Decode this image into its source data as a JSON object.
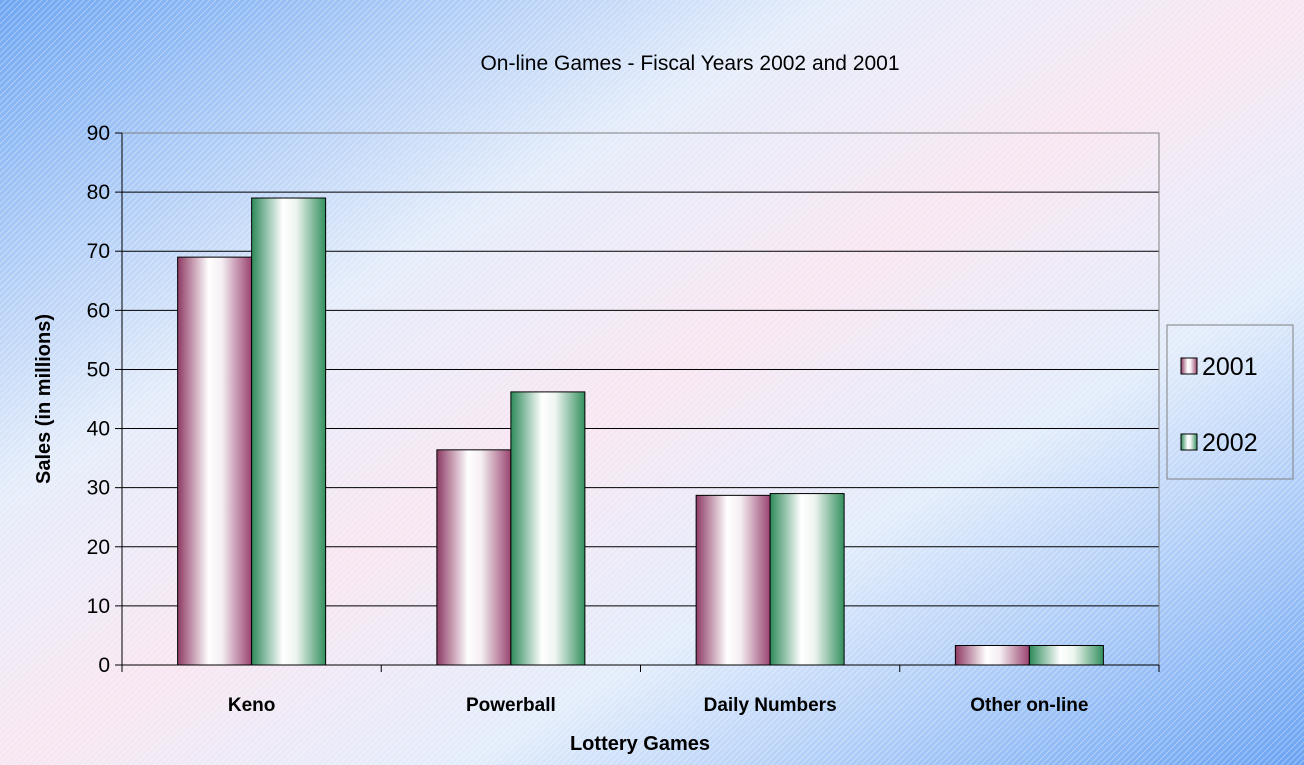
{
  "chart_data": {
    "type": "bar",
    "title": "On-line Games -  Fiscal Years 2002 and  2001",
    "xlabel": "Lottery Games",
    "ylabel": "Sales (in millions)",
    "categories": [
      "Keno",
      "Powerball",
      "Daily Numbers",
      "Other on-line"
    ],
    "series": [
      {
        "name": "2001",
        "values": [
          69,
          36.4,
          28.7,
          3.3
        ]
      },
      {
        "name": "2002",
        "values": [
          79,
          46.2,
          29.0,
          3.3
        ]
      }
    ],
    "ylim": [
      0,
      90
    ],
    "yticks": [
      0,
      10,
      20,
      30,
      40,
      50,
      60,
      70,
      80,
      90
    ],
    "grid": true,
    "legend_position": "right",
    "colors": {
      "series_2001_dark": "#8e3a64",
      "series_2001_light": "#ffffff",
      "series_2002_dark": "#2e8a5a",
      "series_2002_light": "#ffffff",
      "background_blue": "#6fa8f0",
      "background_pink": "#f6e2f0"
    }
  }
}
